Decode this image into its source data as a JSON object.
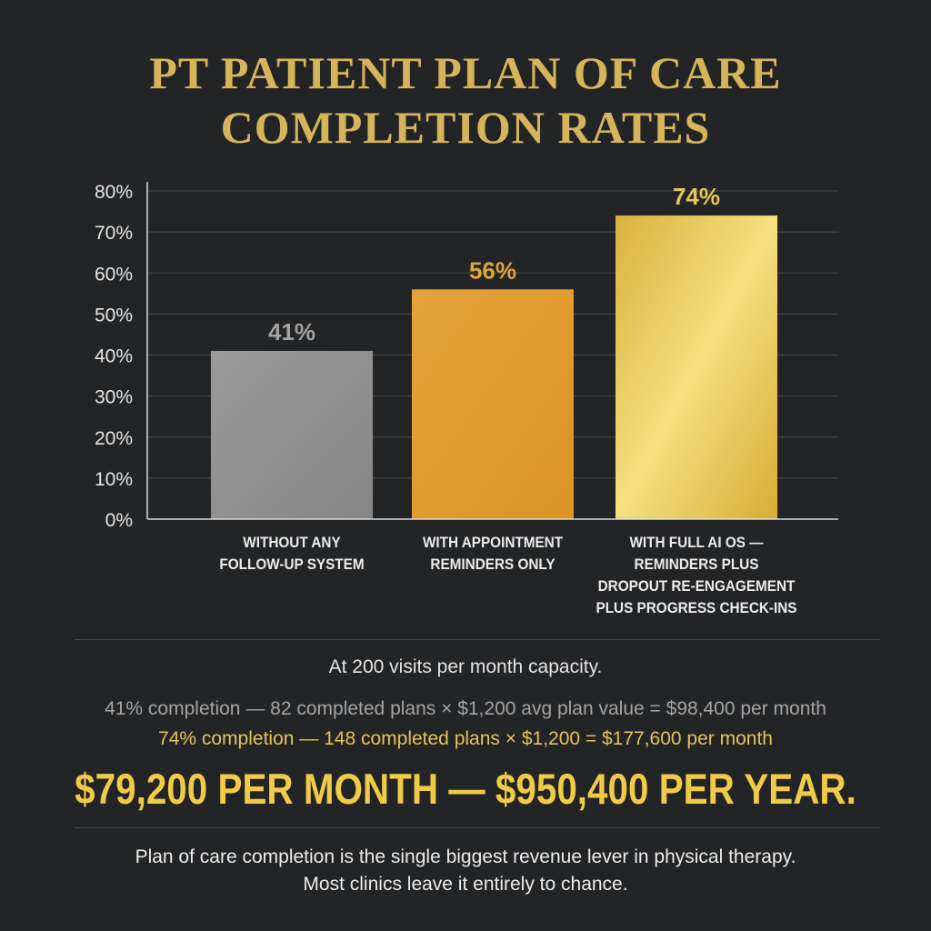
{
  "title": {
    "line1": "PT PATIENT PLAN OF CARE",
    "line2": "COMPLETION RATES"
  },
  "colors": {
    "background": "#232426",
    "title_gold": "#d6b55a",
    "bar_grey": "#8f8f8f",
    "bar_orange": "#e29d2e",
    "bar_gold": "#e9c856",
    "grey_text": "#a4a4a4",
    "gold_text": "#e3c45c"
  },
  "chart_data": {
    "type": "bar",
    "categories": [
      [
        "WITHOUT ANY",
        "FOLLOW-UP SYSTEM"
      ],
      [
        "WITH APPOINTMENT",
        "REMINDERS ONLY"
      ],
      [
        "WITH FULL AI OS —",
        "REMINDERS PLUS",
        "DROPOUT RE-ENGAGEMENT",
        "PLUS PROGRESS CHECK-INS"
      ]
    ],
    "values": [
      41,
      56,
      74
    ],
    "data_labels": [
      "41%",
      "56%",
      "74%"
    ],
    "ylim": [
      0,
      80
    ],
    "yticks": [
      0,
      10,
      20,
      30,
      40,
      50,
      60,
      70,
      80
    ],
    "ytick_labels": [
      "0%",
      "10%",
      "20%",
      "30%",
      "40%",
      "50%",
      "60%",
      "70%",
      "80%"
    ],
    "grid": true,
    "legend": "none",
    "title": "",
    "xlabel": "",
    "ylabel": ""
  },
  "summary": {
    "capacity": "At 200 visits per month capacity.",
    "calc_without": "41% completion — 82 completed plans × $1,200 avg plan value = $98,400 per month",
    "calc_with": "74% completion — 148 completed plans × $1,200 = $177,600 per month",
    "difference": "$79,200 PER MONTH — $950,400 PER YEAR.",
    "footer_line1": "Plan of care completion is the single biggest revenue lever in physical therapy.",
    "footer_line2": "Most clinics leave it entirely to chance."
  }
}
